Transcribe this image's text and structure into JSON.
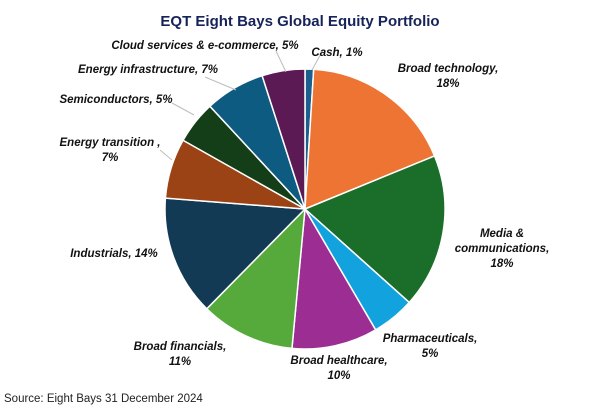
{
  "chart_data": {
    "type": "pie",
    "title": "EQT Eight Bays Global Equity Portfolio",
    "unit": "%",
    "slices": [
      {
        "label": "Cash",
        "value": 1,
        "color": "#1c5f8f",
        "display_lines": [
          "Cash, 1%"
        ]
      },
      {
        "label": "Broad technology",
        "value": 18,
        "color": "#ed7433",
        "display_lines": [
          "Broad technology,",
          "18%"
        ]
      },
      {
        "label": "Media & communications",
        "value": 18,
        "color": "#1b6e2a",
        "display_lines": [
          "Media &",
          "communications,",
          "18%"
        ]
      },
      {
        "label": "Pharmaceuticals",
        "value": 5,
        "color": "#12a3df",
        "display_lines": [
          "Pharmaceuticals,",
          "5%"
        ]
      },
      {
        "label": "Broad healthcare",
        "value": 10,
        "color": "#9c2e93",
        "display_lines": [
          "Broad healthcare,",
          "10%"
        ]
      },
      {
        "label": "Broad financials",
        "value": 11,
        "color": "#55aa3b",
        "display_lines": [
          "Broad financials,",
          "11%"
        ]
      },
      {
        "label": "Industrials",
        "value": 14,
        "color": "#123a55",
        "display_lines": [
          "Industrials, 14%"
        ]
      },
      {
        "label": "Energy transition",
        "value": 7,
        "color": "#9b4314",
        "display_lines": [
          "Energy transition ,",
          "7%"
        ]
      },
      {
        "label": "Semiconductors",
        "value": 5,
        "color": "#133e18",
        "display_lines": [
          "Semiconductors, 5%"
        ]
      },
      {
        "label": "Energy infrastructure",
        "value": 7,
        "color": "#0e5b82",
        "display_lines": [
          "Energy infrastructure, 7%"
        ]
      },
      {
        "label": "Cloud services & e-commerce",
        "value": 5,
        "color": "#5c1a55",
        "display_lines": [
          "Cloud services & e-commerce, 5%"
        ]
      }
    ]
  },
  "footer": {
    "source": "Source: Eight Bays 31 December 2024"
  }
}
